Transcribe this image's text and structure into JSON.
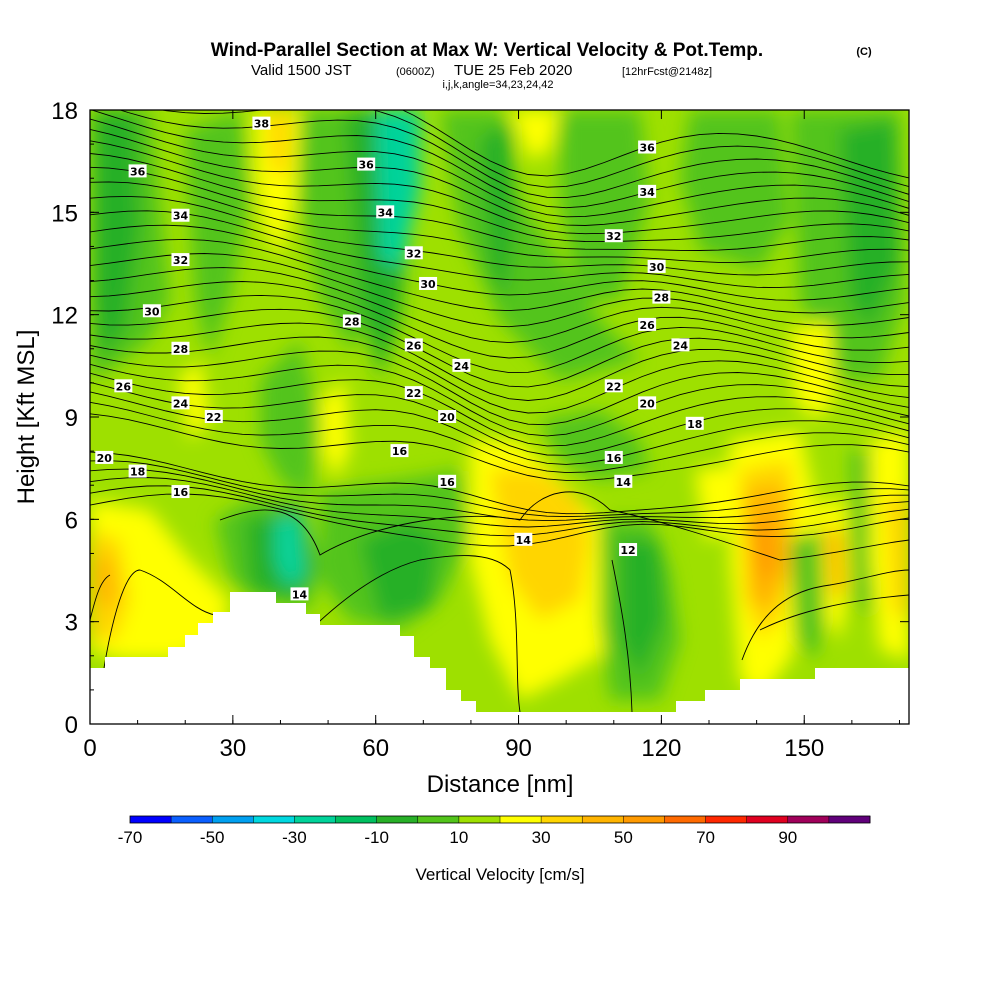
{
  "header": {
    "title_main": "Wind-Parallel Section at Max W: Vertical Velocity & Pot.Temp.",
    "title_mark": "(C)",
    "valid_prefix": "Valid 1500 JST",
    "valid_utc": "(0600Z)",
    "valid_date": "TUE 25 Feb 2020",
    "valid_fcst": "[12hrFcst@2148z]",
    "indices": "i,j,k,angle=34,23,24,42"
  },
  "colorbar": {
    "label": "Vertical Velocity [cm/s]",
    "tick_labels": [
      "-70",
      "-50",
      "-30",
      "-10",
      "10",
      "30",
      "50",
      "70",
      "90"
    ],
    "colors": [
      "#0000ff",
      "#0a5fff",
      "#00a0f0",
      "#00d8e0",
      "#00d39a",
      "#00c060",
      "#28b028",
      "#52c41a",
      "#9ee000",
      "#ffff00",
      "#ffd500",
      "#ffb400",
      "#ff9a00",
      "#ff6a00",
      "#ff2800",
      "#e00020",
      "#a0005a",
      "#60007a"
    ]
  },
  "chart_data": {
    "type": "heatmap",
    "xlabel": "Distance [nm]",
    "ylabel": "Height [Kft MSL]",
    "xlim": [
      0,
      172
    ],
    "ylim": [
      0,
      18
    ],
    "x_ticks": [
      0,
      30,
      60,
      90,
      120,
      150
    ],
    "y_ticks": [
      0,
      3,
      6,
      9,
      12,
      15,
      18
    ],
    "contour_labels": [
      {
        "text": "38",
        "x": 36,
        "y": 17.6
      },
      {
        "text": "36",
        "x": 10,
        "y": 16.2
      },
      {
        "text": "36",
        "x": 58,
        "y": 16.4
      },
      {
        "text": "36",
        "x": 117,
        "y": 16.9
      },
      {
        "text": "34",
        "x": 19,
        "y": 14.9
      },
      {
        "text": "34",
        "x": 62,
        "y": 15.0
      },
      {
        "text": "34",
        "x": 117,
        "y": 15.6
      },
      {
        "text": "32",
        "x": 19,
        "y": 13.6
      },
      {
        "text": "32",
        "x": 68,
        "y": 13.8
      },
      {
        "text": "32",
        "x": 110,
        "y": 14.3
      },
      {
        "text": "30",
        "x": 13,
        "y": 12.1
      },
      {
        "text": "30",
        "x": 71,
        "y": 12.9
      },
      {
        "text": "30",
        "x": 119,
        "y": 13.4
      },
      {
        "text": "28",
        "x": 19,
        "y": 11.0
      },
      {
        "text": "28",
        "x": 55,
        "y": 11.8
      },
      {
        "text": "28",
        "x": 120,
        "y": 12.5
      },
      {
        "text": "26",
        "x": 7,
        "y": 9.9
      },
      {
        "text": "26",
        "x": 68,
        "y": 11.1
      },
      {
        "text": "26",
        "x": 117,
        "y": 11.7
      },
      {
        "text": "24",
        "x": 19,
        "y": 9.4
      },
      {
        "text": "24",
        "x": 78,
        "y": 10.5
      },
      {
        "text": "24",
        "x": 124,
        "y": 11.1
      },
      {
        "text": "22",
        "x": 26,
        "y": 9.0
      },
      {
        "text": "22",
        "x": 68,
        "y": 9.7
      },
      {
        "text": "22",
        "x": 110,
        "y": 9.9
      },
      {
        "text": "20",
        "x": 3,
        "y": 7.8
      },
      {
        "text": "20",
        "x": 75,
        "y": 9.0
      },
      {
        "text": "20",
        "x": 117,
        "y": 9.4
      },
      {
        "text": "18",
        "x": 10,
        "y": 7.4
      },
      {
        "text": "18",
        "x": 127,
        "y": 8.8
      },
      {
        "text": "16",
        "x": 19,
        "y": 6.8
      },
      {
        "text": "16",
        "x": 65,
        "y": 8.0
      },
      {
        "text": "16",
        "x": 110,
        "y": 7.8
      },
      {
        "text": "16",
        "x": 75,
        "y": 7.1
      },
      {
        "text": "14",
        "x": 112,
        "y": 7.1
      },
      {
        "text": "14",
        "x": 91,
        "y": 5.4
      },
      {
        "text": "14",
        "x": 44,
        "y": 3.8
      },
      {
        "text": "12",
        "x": 113,
        "y": 5.1
      }
    ]
  }
}
